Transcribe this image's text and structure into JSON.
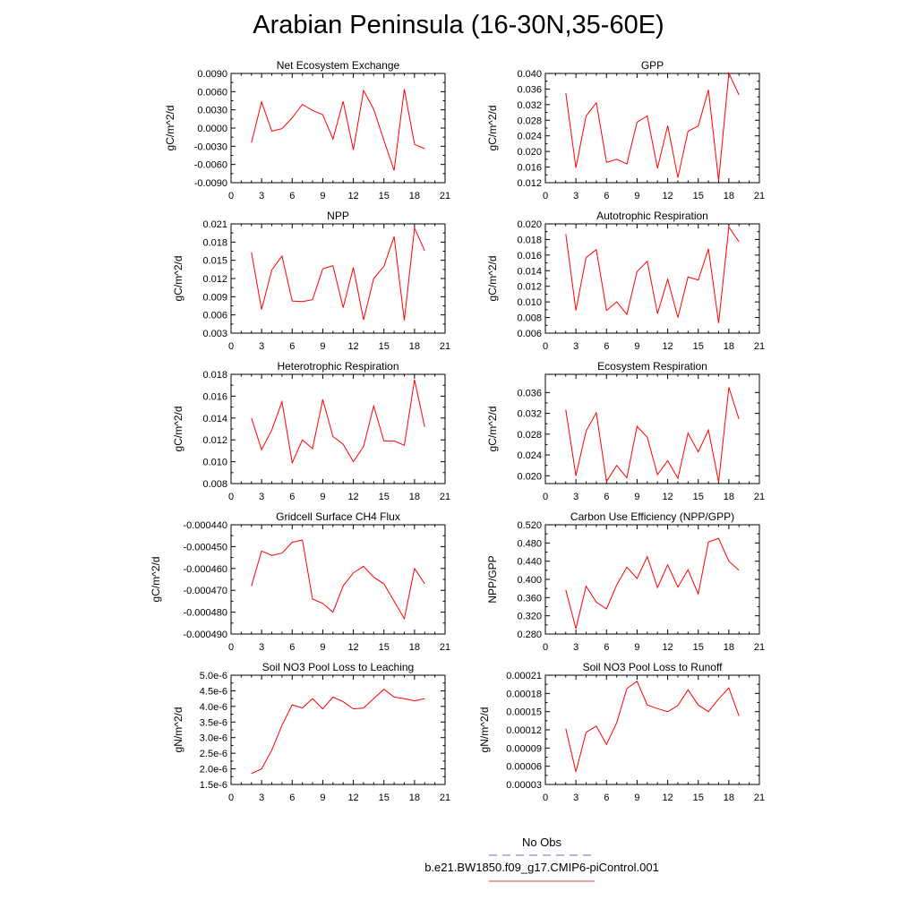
{
  "title": "Arabian Peninsula (16-30N,35-60E)",
  "legend": {
    "entries": [
      {
        "label": "No Obs",
        "color": "#6b6bd6",
        "style": "dashed"
      },
      {
        "label": "b.e21.BW1850.f09_g17.CMIP6-piControl.001",
        "color": "#e8463c",
        "style": "solid"
      }
    ]
  },
  "chart_data": [
    {
      "type": "line",
      "title": "Net Ecosystem Exchange",
      "ylabel": "gC/m^2/d",
      "xlim": [
        0,
        21
      ],
      "xticks": [
        "0",
        "3",
        "6",
        "9",
        "12",
        "15",
        "18",
        "21"
      ],
      "ylim": [
        -0.009,
        0.009
      ],
      "yticks": [
        "-0.0090",
        "-0.0060",
        "-0.0030",
        "0.0000",
        "0.0030",
        "0.0060",
        "0.0090"
      ],
      "series": [
        {
          "color": "#ff0000",
          "x": [
            2,
            3,
            4,
            5,
            6,
            7,
            8,
            9,
            10,
            11,
            12,
            13,
            14,
            15,
            16,
            17,
            18,
            19
          ],
          "y": [
            -0.0024,
            0.0043,
            -0.0005,
            -0.0001,
            0.0017,
            0.0039,
            0.0029,
            0.0022,
            -0.0018,
            0.0044,
            -0.0036,
            0.0062,
            0.0031,
            -0.002,
            -0.007,
            0.0064,
            -0.0027,
            -0.0034
          ]
        }
      ]
    },
    {
      "type": "line",
      "title": "GPP",
      "ylabel": "gC/m^2/d",
      "xlim": [
        0,
        21
      ],
      "xticks": [
        "0",
        "3",
        "6",
        "9",
        "12",
        "15",
        "18",
        "21"
      ],
      "ylim": [
        0.012,
        0.04
      ],
      "yticks": [
        "0.012",
        "0.016",
        "0.020",
        "0.024",
        "0.028",
        "0.032",
        "0.036",
        "0.040"
      ],
      "series": [
        {
          "color": "#ff0000",
          "x": [
            2,
            3,
            4,
            5,
            6,
            7,
            8,
            9,
            10,
            11,
            12,
            13,
            14,
            15,
            16,
            17,
            18,
            19
          ],
          "y": [
            0.035,
            0.0158,
            0.0291,
            0.0325,
            0.0172,
            0.018,
            0.0168,
            0.0275,
            0.0291,
            0.0157,
            0.0266,
            0.0133,
            0.0252,
            0.0265,
            0.0358,
            0.0125,
            0.0401,
            0.0345
          ]
        }
      ]
    },
    {
      "type": "line",
      "title": "NPP",
      "ylabel": "gC/m^2/d",
      "xlim": [
        0,
        21
      ],
      "xticks": [
        "0",
        "3",
        "6",
        "9",
        "12",
        "15",
        "18",
        "21"
      ],
      "ylim": [
        0.003,
        0.021
      ],
      "yticks": [
        "0.003",
        "0.006",
        "0.009",
        "0.012",
        "0.015",
        "0.018",
        "0.021"
      ],
      "series": [
        {
          "color": "#ff0000",
          "x": [
            2,
            3,
            4,
            5,
            6,
            7,
            8,
            9,
            10,
            11,
            12,
            13,
            14,
            15,
            16,
            17,
            18,
            19
          ],
          "y": [
            0.0163,
            0.0069,
            0.0134,
            0.0157,
            0.0083,
            0.0082,
            0.0085,
            0.0136,
            0.0141,
            0.0072,
            0.0138,
            0.0052,
            0.012,
            0.014,
            0.0189,
            0.0051,
            0.0203,
            0.0166
          ]
        }
      ]
    },
    {
      "type": "line",
      "title": "Autotrophic Respiration",
      "ylabel": "gC/m^2/d",
      "xlim": [
        0,
        21
      ],
      "xticks": [
        "0",
        "3",
        "6",
        "9",
        "12",
        "15",
        "18",
        "21"
      ],
      "ylim": [
        0.006,
        0.02
      ],
      "yticks": [
        "0.006",
        "0.008",
        "0.010",
        "0.012",
        "0.014",
        "0.016",
        "0.018",
        "0.020"
      ],
      "series": [
        {
          "color": "#ff0000",
          "x": [
            2,
            3,
            4,
            5,
            6,
            7,
            8,
            9,
            10,
            11,
            12,
            13,
            14,
            15,
            16,
            17,
            18,
            19
          ],
          "y": [
            0.0187,
            0.0089,
            0.0157,
            0.0167,
            0.0089,
            0.01,
            0.0084,
            0.0139,
            0.0152,
            0.0085,
            0.0129,
            0.008,
            0.0132,
            0.0128,
            0.0168,
            0.0073,
            0.0196,
            0.0177
          ]
        }
      ]
    },
    {
      "type": "line",
      "title": "Heterotrophic Respiration",
      "ylabel": "gC/m^2/d",
      "xlim": [
        0,
        21
      ],
      "xticks": [
        "0",
        "3",
        "6",
        "9",
        "12",
        "15",
        "18",
        "21"
      ],
      "ylim": [
        0.008,
        0.018
      ],
      "yticks": [
        "0.008",
        "0.010",
        "0.012",
        "0.014",
        "0.016",
        "0.018"
      ],
      "series": [
        {
          "color": "#ff0000",
          "x": [
            2,
            3,
            4,
            5,
            6,
            7,
            8,
            9,
            10,
            11,
            12,
            13,
            14,
            15,
            16,
            17,
            18,
            19
          ],
          "y": [
            0.014,
            0.0111,
            0.0129,
            0.0155,
            0.0099,
            0.012,
            0.0112,
            0.0157,
            0.0123,
            0.0116,
            0.01,
            0.0114,
            0.0151,
            0.0119,
            0.0119,
            0.0115,
            0.0175,
            0.0132
          ]
        }
      ]
    },
    {
      "type": "line",
      "title": "Ecosystem Respiration",
      "ylabel": "gC/m^2/d",
      "xlim": [
        0,
        21
      ],
      "xticks": [
        "0",
        "3",
        "6",
        "9",
        "12",
        "15",
        "18",
        "21"
      ],
      "ylim": [
        0.0185,
        0.0395
      ],
      "yticks": [
        "0.020",
        "0.024",
        "0.028",
        "0.032",
        "0.036"
      ],
      "yticks_values": [
        0.02,
        0.024,
        0.028,
        0.032,
        0.036
      ],
      "series": [
        {
          "color": "#ff0000",
          "x": [
            2,
            3,
            4,
            5,
            6,
            7,
            8,
            9,
            10,
            11,
            12,
            13,
            14,
            15,
            16,
            17,
            18,
            19
          ],
          "y": [
            0.0327,
            0.02,
            0.0286,
            0.0321,
            0.0189,
            0.022,
            0.0196,
            0.0295,
            0.0274,
            0.0202,
            0.0229,
            0.0195,
            0.0282,
            0.0246,
            0.0288,
            0.0188,
            0.037,
            0.0309
          ]
        }
      ]
    },
    {
      "type": "line",
      "title": "Gridcell Surface CH4 Flux",
      "ylabel": "gC/m^2/d",
      "xlim": [
        0,
        21
      ],
      "xticks": [
        "0",
        "3",
        "6",
        "9",
        "12",
        "15",
        "18",
        "21"
      ],
      "ylim": [
        -0.00049,
        -0.00044
      ],
      "yticks": [
        "-0.000490",
        "-0.000480",
        "-0.000470",
        "-0.000460",
        "-0.000450",
        "-0.000440"
      ],
      "series": [
        {
          "color": "#ff0000",
          "x": [
            2,
            3,
            4,
            5,
            6,
            7,
            8,
            9,
            10,
            11,
            12,
            13,
            14,
            15,
            16,
            17,
            18,
            19
          ],
          "y": [
            -0.000468,
            -0.000452,
            -0.000454,
            -0.000453,
            -0.000448,
            -0.000447,
            -0.000474,
            -0.000476,
            -0.00048,
            -0.000468,
            -0.000462,
            -0.000459,
            -0.000464,
            -0.000467,
            -0.000475,
            -0.000483,
            -0.00046,
            -0.000467
          ]
        }
      ]
    },
    {
      "type": "line",
      "title": "Carbon Use Efficiency (NPP/GPP)",
      "ylabel": "NPP/GPP",
      "xlim": [
        0,
        21
      ],
      "xticks": [
        "0",
        "3",
        "6",
        "9",
        "12",
        "15",
        "18",
        "21"
      ],
      "ylim": [
        0.28,
        0.52
      ],
      "yticks": [
        "0.280",
        "0.320",
        "0.360",
        "0.400",
        "0.440",
        "0.480",
        "0.520"
      ],
      "series": [
        {
          "color": "#ff0000",
          "x": [
            2,
            3,
            4,
            5,
            6,
            7,
            8,
            9,
            10,
            11,
            12,
            13,
            14,
            15,
            16,
            17,
            18,
            19
          ],
          "y": [
            0.377,
            0.292,
            0.385,
            0.35,
            0.335,
            0.388,
            0.427,
            0.402,
            0.45,
            0.382,
            0.432,
            0.383,
            0.421,
            0.368,
            0.482,
            0.49,
            0.44,
            0.42
          ]
        }
      ]
    },
    {
      "type": "line",
      "title": "Soil NO3 Pool Loss to Leaching",
      "ylabel": "gN/m^2/d",
      "xlim": [
        0,
        21
      ],
      "xticks": [
        "0",
        "3",
        "6",
        "9",
        "12",
        "15",
        "18",
        "21"
      ],
      "ylim": [
        1.5e-06,
        5e-06
      ],
      "yticks": [
        "1.5e-6",
        "2.0e-6",
        "2.5e-6",
        "3.0e-6",
        "3.5e-6",
        "4.0e-6",
        "4.5e-6",
        "5.0e-6"
      ],
      "series": [
        {
          "color": "#ff0000",
          "x": [
            2,
            3,
            4,
            5,
            6,
            7,
            8,
            9,
            10,
            11,
            12,
            13,
            14,
            15,
            16,
            17,
            18,
            19
          ],
          "y": [
            1.85e-06,
            2e-06,
            2.6e-06,
            3.4e-06,
            4.05e-06,
            3.95e-06,
            4.25e-06,
            3.92e-06,
            4.3e-06,
            4.15e-06,
            3.92e-06,
            3.95e-06,
            4.25e-06,
            4.55e-06,
            4.3e-06,
            4.25e-06,
            4.18e-06,
            4.25e-06
          ]
        }
      ]
    },
    {
      "type": "line",
      "title": "Soil NO3 Pool Loss to Runoff",
      "ylabel": "gN/m^2/d",
      "xlim": [
        0,
        21
      ],
      "xticks": [
        "0",
        "3",
        "6",
        "9",
        "12",
        "15",
        "18",
        "21"
      ],
      "ylim": [
        3e-05,
        0.00021
      ],
      "yticks": [
        "0.00003",
        "0.00006",
        "0.00009",
        "0.00012",
        "0.00015",
        "0.00018",
        "0.00021"
      ],
      "series": [
        {
          "color": "#ff0000",
          "x": [
            2,
            3,
            4,
            5,
            6,
            7,
            8,
            9,
            10,
            11,
            12,
            13,
            14,
            15,
            16,
            17,
            18,
            19
          ],
          "y": [
            0.000122,
            5.1e-05,
            0.000116,
            0.000126,
            9.6e-05,
            0.000132,
            0.000188,
            0.0002,
            0.000161,
            0.000155,
            0.00015,
            0.00016,
            0.000186,
            0.000161,
            0.00015,
            0.000171,
            0.000189,
            0.000143
          ]
        }
      ]
    }
  ]
}
